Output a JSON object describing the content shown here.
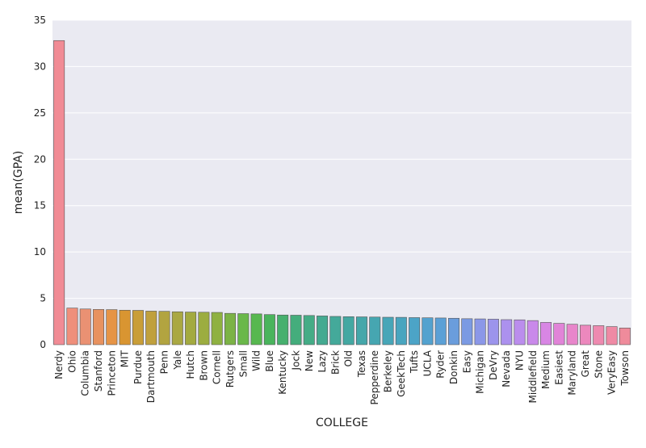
{
  "chart_data": {
    "type": "bar",
    "xlabel": "COLLEGE",
    "ylabel": "mean(GPA)",
    "ylim": [
      0,
      35
    ],
    "yticks": [
      0,
      5,
      10,
      15,
      20,
      25,
      30,
      35
    ],
    "grid": true,
    "legend": "none",
    "background": "#eaeaf2",
    "categories": [
      "Nerdy",
      "Ohio",
      "Columbia",
      "Stanford",
      "Princeton",
      "MIT",
      "Purdue",
      "Dartmouth",
      "Penn",
      "Yale",
      "Hutch",
      "Brown",
      "Cornell",
      "Rutgers",
      "Small",
      "Wild",
      "Blue",
      "Kentucky",
      "Jock",
      "New",
      "Lazy",
      "Brick",
      "Old",
      "Texas",
      "Pepperdine",
      "Berkeley",
      "GeekTech",
      "Tufts",
      "UCLA",
      "Ryder",
      "Donkin",
      "Easy",
      "Michigan",
      "DeVry",
      "Nevada",
      "NYU",
      "Middlefield",
      "Medium",
      "Easiest",
      "Maryland",
      "Great",
      "Stone",
      "VeryEasy",
      "Towson"
    ],
    "values": [
      32.8,
      3.95,
      3.85,
      3.8,
      3.78,
      3.72,
      3.7,
      3.62,
      3.6,
      3.55,
      3.52,
      3.5,
      3.48,
      3.38,
      3.35,
      3.32,
      3.25,
      3.2,
      3.18,
      3.15,
      3.1,
      3.05,
      3.02,
      3.0,
      2.98,
      2.96,
      2.95,
      2.92,
      2.9,
      2.88,
      2.85,
      2.8,
      2.78,
      2.75,
      2.7,
      2.68,
      2.6,
      2.4,
      2.3,
      2.2,
      2.1,
      2.05,
      1.95,
      1.8
    ],
    "colors": [
      "#f18b95",
      "#ef8f7b",
      "#ea9173",
      "#e8925f",
      "#e69446",
      "#d99531",
      "#c99e38",
      "#c0a03d",
      "#b2a440",
      "#aaa843",
      "#a3aa40",
      "#9cad40",
      "#8fb141",
      "#7cb346",
      "#6ab84a",
      "#57b84f",
      "#49b45c",
      "#46b06e",
      "#44ad7c",
      "#44ac86",
      "#44aa91",
      "#44a99a",
      "#44a8a2",
      "#45a7aa",
      "#46a6b1",
      "#47a6b8",
      "#49a5bf",
      "#4ca4c7",
      "#53a2cf",
      "#5ba0d6",
      "#6a9ddc",
      "#7b9ae3",
      "#8b97e8",
      "#9c94ec",
      "#ac91ee",
      "#bb8ded",
      "#c989ea",
      "#d886e4",
      "#e184d8",
      "#e886cb",
      "#ec88bd",
      "#ee8ab0",
      "#ef8aa5",
      "#ef8b9b"
    ]
  }
}
